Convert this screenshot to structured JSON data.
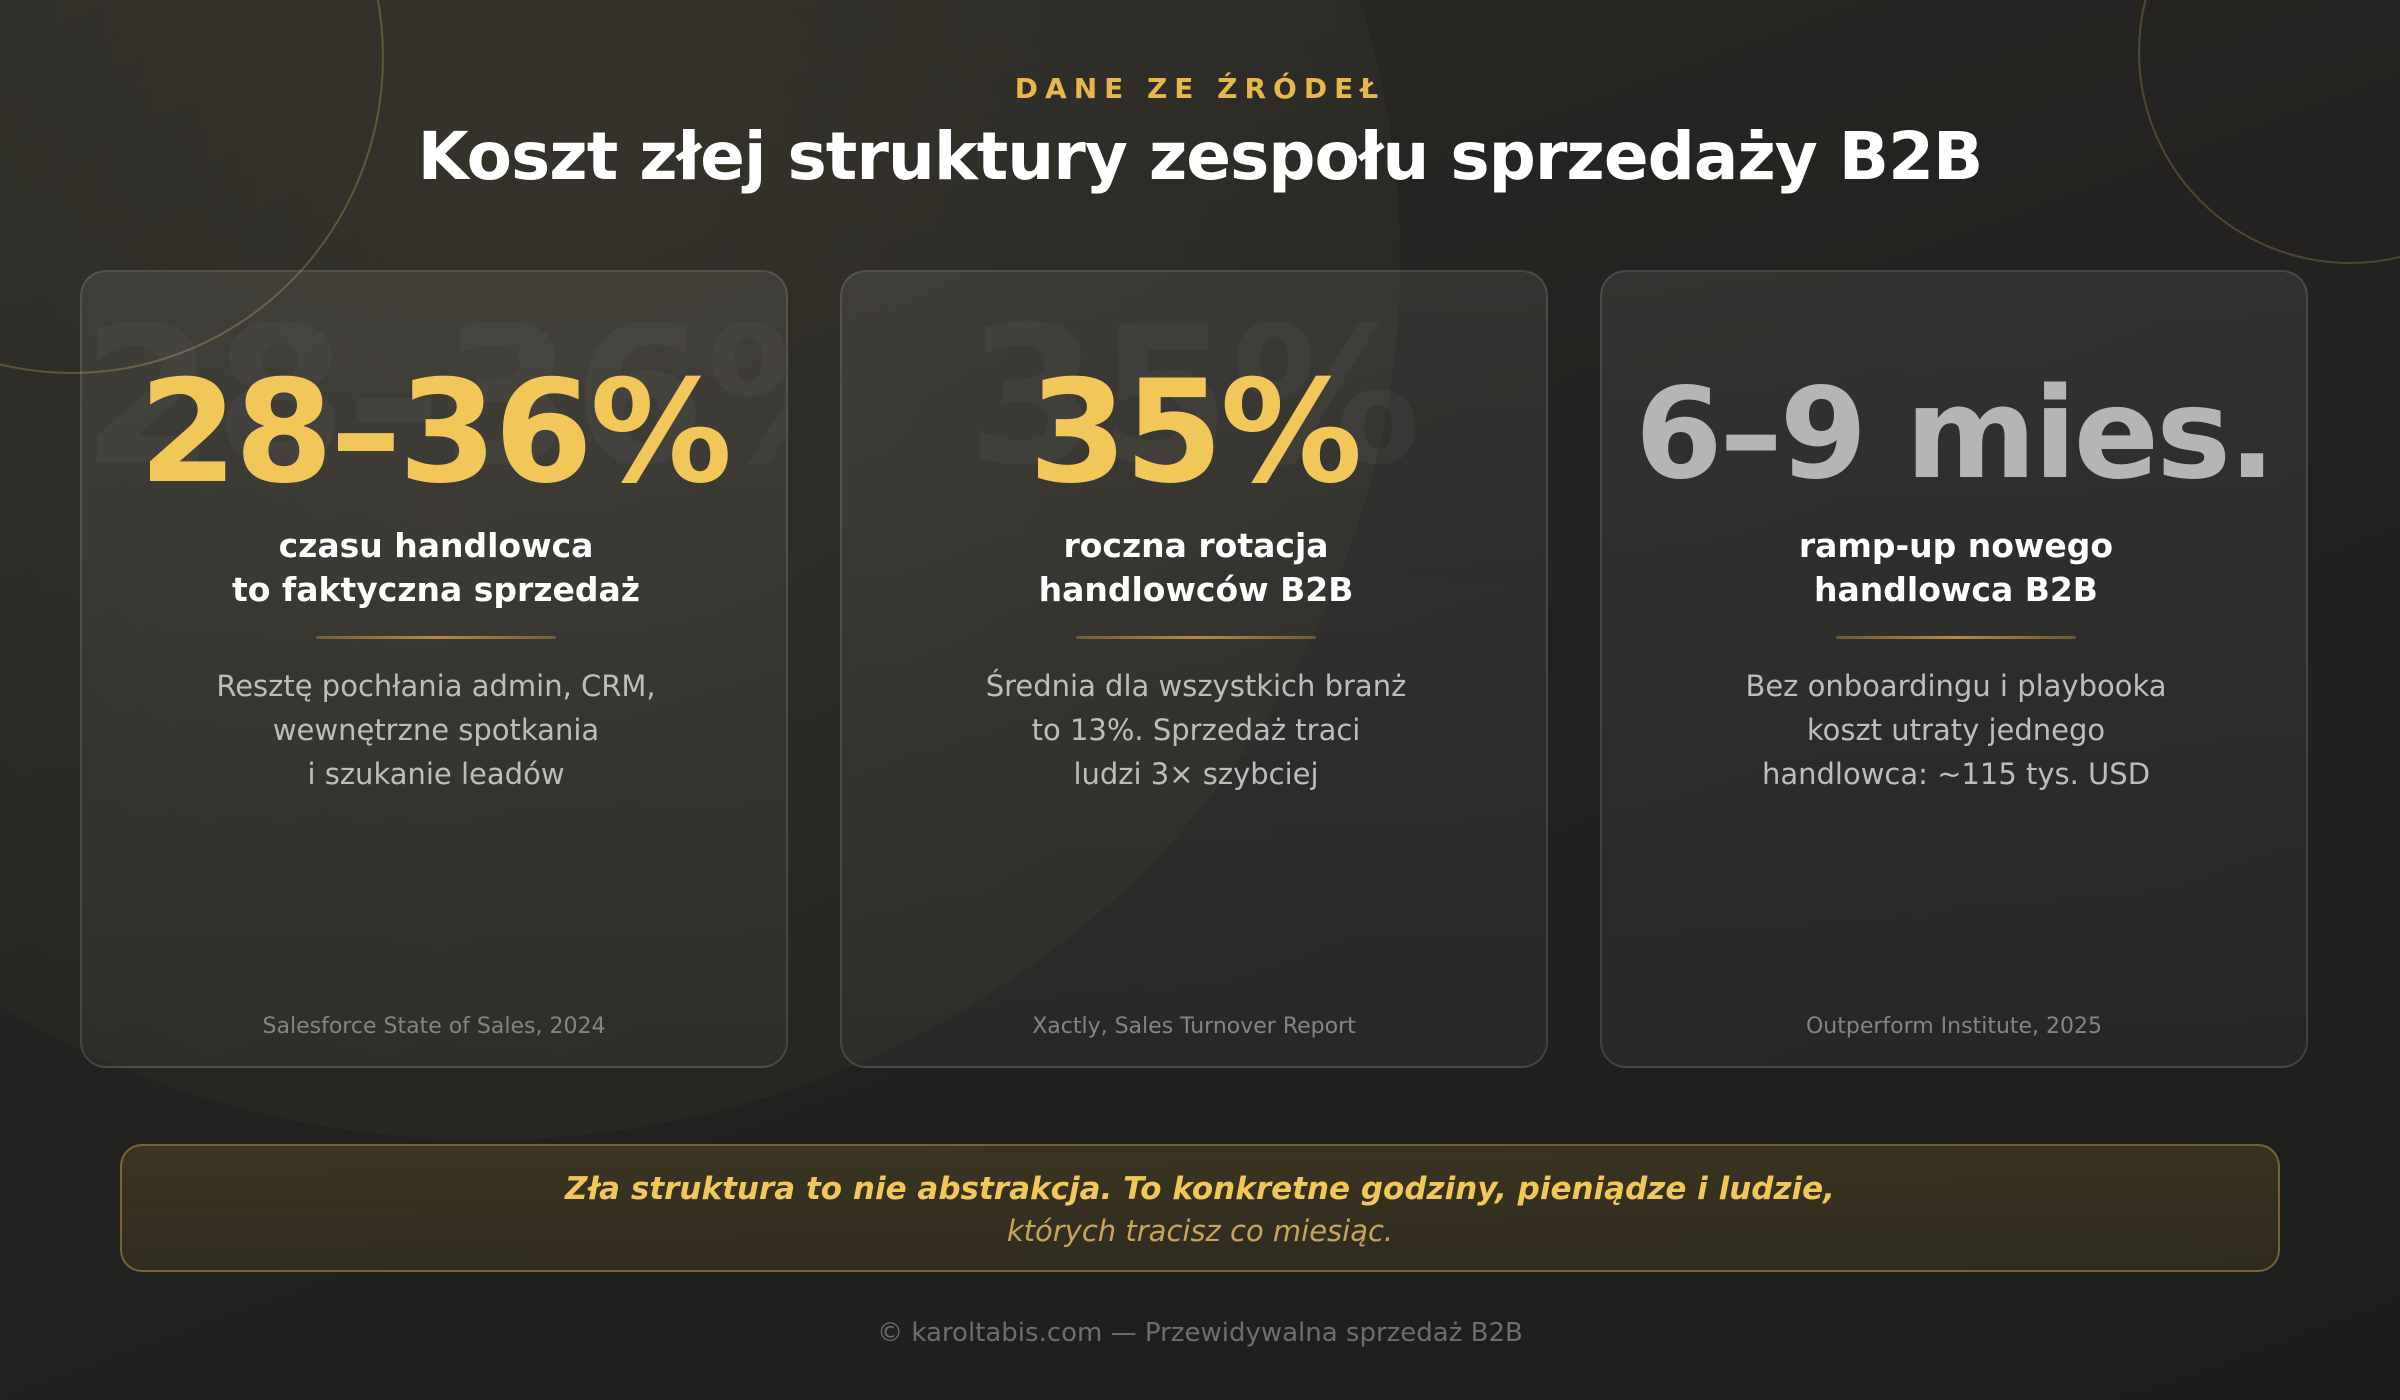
{
  "header": {
    "eyebrow": "DANE ZE ŹRÓDEŁ",
    "title": "Koszt złej struktury zespołu sprzedaży B2B"
  },
  "cards": [
    {
      "stat": "28–36%",
      "label_lines": [
        "czasu handlowca",
        "to faktyczna sprzedaż"
      ],
      "desc_lines": [
        "Resztę pochłania admin, CRM,",
        "wewnętrzne spotkania",
        "i szukanie leadów"
      ],
      "source": "Salesforce State of Sales, 2024"
    },
    {
      "stat": "35%",
      "label_lines": [
        "roczna rotacja",
        "handlowców B2B"
      ],
      "desc_lines": [
        "Średnia dla wszystkich branż",
        "to 13%. Sprzedaż traci",
        "ludzi 3× szybciej"
      ],
      "source": "Xactly, Sales Turnover Report"
    },
    {
      "stat": "6–9 mies.",
      "label_lines": [
        "ramp-up nowego",
        "handlowca B2B"
      ],
      "desc_lines": [
        "Bez onboardingu i playbooka",
        "koszt utraty jednego",
        "handlowca: ~115 tys. USD"
      ],
      "source": "Outperform Institute, 2025"
    }
  ],
  "quote": {
    "main": "Zła struktura to nie abstrakcja. To konkretne godziny, pieniądze i ludzie,",
    "sub": "których tracisz co miesiąc."
  },
  "footer": {
    "text": "© karoltabis.com — Przewidywalna sprzedaż B2B"
  },
  "colors": {
    "accent": "#f2c75a",
    "eyebrow": "#e8b74c",
    "background": "#232220",
    "muted_stat": "#b5b5b3"
  }
}
